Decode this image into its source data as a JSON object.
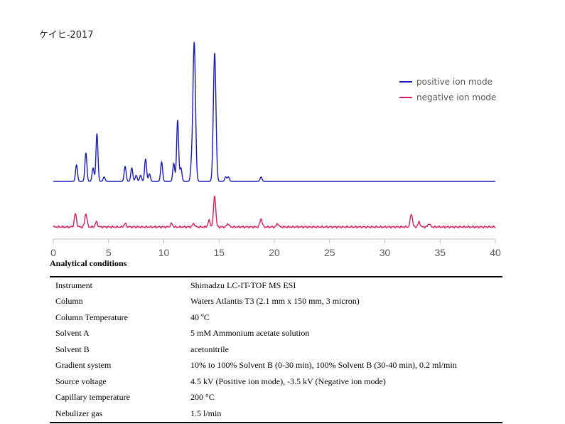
{
  "title": "ケイヒ-2017",
  "chart_data": {
    "type": "line",
    "xlim": [
      0,
      40
    ],
    "x_ticks": [
      0,
      5,
      10,
      15,
      20,
      25,
      30,
      35,
      40
    ],
    "grid": false,
    "legend_position": "top-right",
    "series": [
      {
        "name": "positive ion mode",
        "color": "#1a1ab8",
        "peaks": [
          {
            "x": 2.1,
            "h": 0.11
          },
          {
            "x": 2.95,
            "h": 0.19
          },
          {
            "x": 3.6,
            "h": 0.09
          },
          {
            "x": 3.95,
            "h": 0.32
          },
          {
            "x": 4.6,
            "h": 0.03
          },
          {
            "x": 6.5,
            "h": 0.1
          },
          {
            "x": 7.1,
            "h": 0.09
          },
          {
            "x": 7.5,
            "h": 0.04
          },
          {
            "x": 7.9,
            "h": 0.04
          },
          {
            "x": 8.35,
            "h": 0.15
          },
          {
            "x": 8.7,
            "h": 0.05
          },
          {
            "x": 9.8,
            "h": 0.13
          },
          {
            "x": 10.9,
            "h": 0.12
          },
          {
            "x": 11.25,
            "h": 0.41
          },
          {
            "x": 11.55,
            "h": 0.09
          },
          {
            "x": 12.5,
            "h": 0.09
          },
          {
            "x": 12.75,
            "h": 0.93
          },
          {
            "x": 14.6,
            "h": 0.86
          },
          {
            "x": 15.6,
            "h": 0.03
          },
          {
            "x": 15.85,
            "h": 0.03
          },
          {
            "x": 18.8,
            "h": 0.03
          }
        ]
      },
      {
        "name": "negative ion mode",
        "color": "#d81b60",
        "peaks": [
          {
            "x": 2.0,
            "h": 0.08
          },
          {
            "x": 2.95,
            "h": 0.08
          },
          {
            "x": 3.9,
            "h": 0.03
          },
          {
            "x": 6.5,
            "h": 0.02
          },
          {
            "x": 10.7,
            "h": 0.02
          },
          {
            "x": 12.7,
            "h": 0.02
          },
          {
            "x": 14.1,
            "h": 0.04
          },
          {
            "x": 14.6,
            "h": 0.19
          },
          {
            "x": 15.8,
            "h": 0.02
          },
          {
            "x": 18.8,
            "h": 0.05
          },
          {
            "x": 20.3,
            "h": 0.02
          },
          {
            "x": 32.4,
            "h": 0.08
          },
          {
            "x": 33.1,
            "h": 0.03
          },
          {
            "x": 34.0,
            "h": 0.02
          }
        ]
      }
    ]
  },
  "conditions": {
    "heading": "Analytical conditions",
    "rows": [
      {
        "param": "Instrument",
        "value": "Shimadzu LC-IT-TOF MS ESI"
      },
      {
        "param": "Column",
        "value": "Waters Atlantis T3 (2.1 mm x 150 mm, 3 micron)"
      },
      {
        "param": "Column Temperature",
        "value": "40 ºC"
      },
      {
        "param": "Solvent A",
        "value": "5 mM Ammonium acetate solution"
      },
      {
        "param": "Solvent B",
        "value": "acetonitrile"
      },
      {
        "param": "Gradient system",
        "value": "10% to 100% Solvent B (0-30 min), 100% Solvent B (30-40 min), 0.2 ml/min"
      },
      {
        "param": "Source voltage",
        "value": "4.5 kV (Positive ion mode), -3.5 kV (Negative ion mode)"
      },
      {
        "param": "Capillary temperature",
        "value": "200 °C"
      },
      {
        "param": "Nebulizer gas",
        "value": "1.5 l/min"
      }
    ]
  }
}
